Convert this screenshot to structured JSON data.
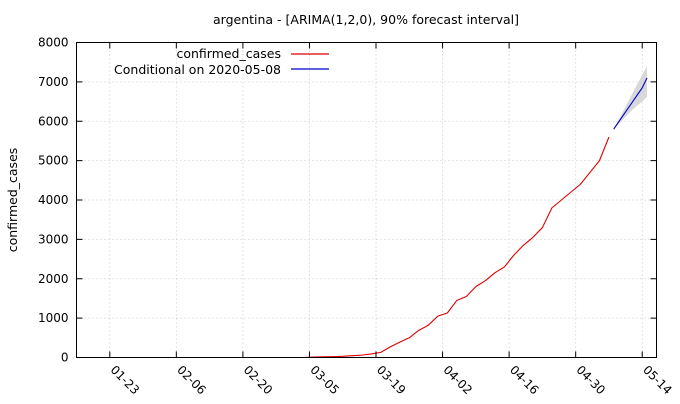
{
  "chart_data": {
    "type": "line",
    "title": "argentina -  [ARIMA(1,2,0), 90% forecast interval]",
    "xlabel": "",
    "ylabel": "confirmed_cases",
    "x_ticks": [
      "01-23",
      "02-06",
      "02-20",
      "03-05",
      "03-19",
      "04-02",
      "04-16",
      "04-30",
      "05-14"
    ],
    "xlim": [
      "2020-01-16",
      "2020-05-17"
    ],
    "y_ticks": [
      "0",
      "1000",
      "2000",
      "3000",
      "4000",
      "5000",
      "6000",
      "7000",
      "8000"
    ],
    "ylim": [
      0,
      8000
    ],
    "grid": true,
    "legend_position": "top-left",
    "colors": {
      "confirmed": "#dd0000",
      "forecast": "#0000cc",
      "band": "#d8d8d8",
      "grid": "#bbbbbb"
    },
    "series": [
      {
        "name": "confirmed_cases",
        "x": [
          "2020-03-04",
          "2020-03-06",
          "2020-03-08",
          "2020-03-10",
          "2020-03-12",
          "2020-03-14",
          "2020-03-16",
          "2020-03-18",
          "2020-03-20",
          "2020-03-22",
          "2020-03-24",
          "2020-03-26",
          "2020-03-28",
          "2020-03-30",
          "2020-04-01",
          "2020-04-03",
          "2020-04-05",
          "2020-04-07",
          "2020-04-09",
          "2020-04-11",
          "2020-04-13",
          "2020-04-15",
          "2020-04-17",
          "2020-04-19",
          "2020-04-21",
          "2020-04-23",
          "2020-04-25",
          "2020-04-27",
          "2020-04-29",
          "2020-05-01",
          "2020-05-03",
          "2020-05-05",
          "2020-05-07"
        ],
        "y": [
          1,
          10,
          17,
          21,
          30,
          45,
          60,
          90,
          130,
          270,
          390,
          500,
          690,
          820,
          1050,
          1130,
          1450,
          1550,
          1800,
          1950,
          2150,
          2300,
          2600,
          2850,
          3050,
          3300,
          3800,
          4000,
          4200,
          4400,
          4700,
          5000,
          5600
        ]
      },
      {
        "name": "Conditional on 2020-05-08",
        "x": [
          "2020-05-08",
          "2020-05-10",
          "2020-05-12",
          "2020-05-14",
          "2020-05-15"
        ],
        "y": [
          5800,
          6150,
          6500,
          6850,
          7100
        ],
        "lower": [
          5800,
          6050,
          6300,
          6500,
          6620
        ],
        "upper": [
          5800,
          6260,
          6720,
          7180,
          7400
        ]
      }
    ]
  }
}
